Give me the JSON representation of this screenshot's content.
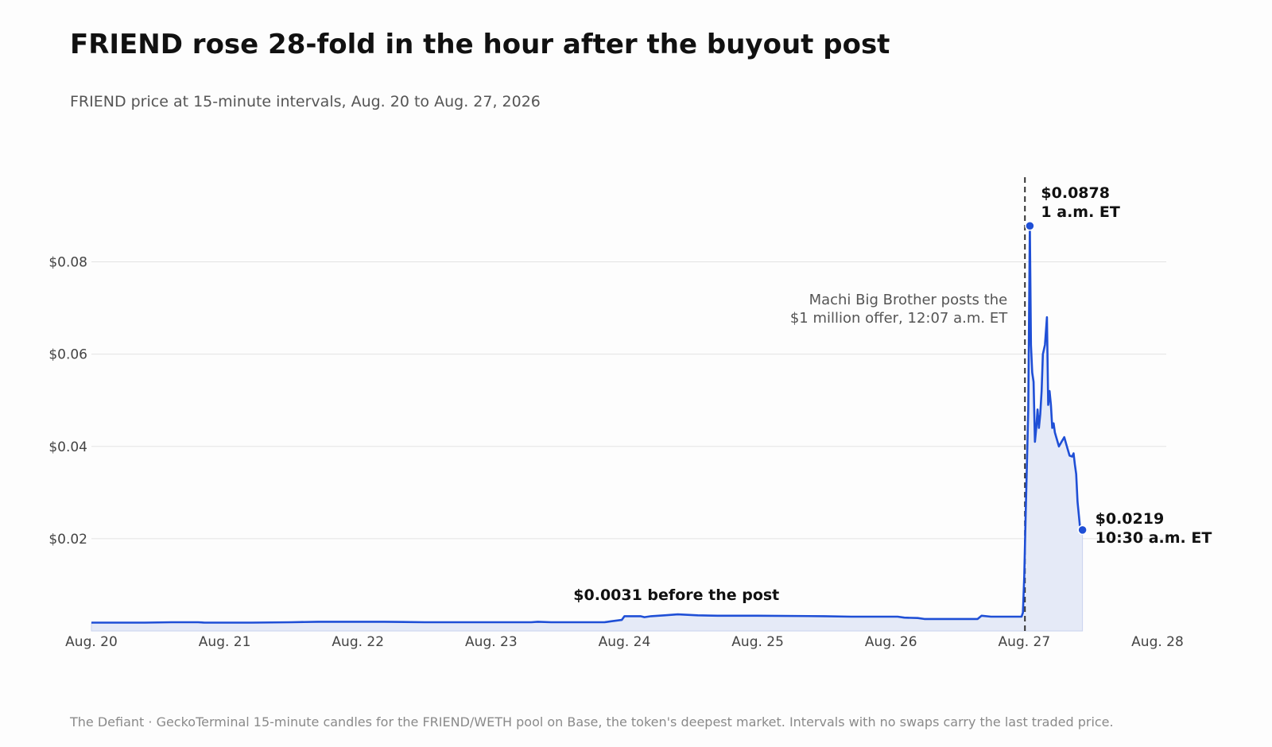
{
  "title": "FRIEND rose 28-fold in the hour after the buyout post",
  "subtitle": "FRIEND price at 15-minute intervals, Aug. 20 to Aug. 27, 2026",
  "footer": "The Defiant · GeckoTerminal 15-minute candles for the FRIEND/WETH pool on Base, the token's deepest market. Intervals with no swaps carry the last traded price.",
  "colors": {
    "line": "#1f4fd6",
    "fill": "#e5eaf7",
    "grid": "#e3e3e3",
    "event_line": "#333333"
  },
  "chart_data": {
    "type": "line",
    "x_unit": "days after Aug. 20, 2026 00:00 ET",
    "xlim": [
      0,
      8
    ],
    "ylim": [
      0,
      0.098
    ],
    "x_ticks": [
      {
        "value": 0,
        "label": "Aug. 20"
      },
      {
        "value": 1,
        "label": "Aug. 21"
      },
      {
        "value": 2,
        "label": "Aug. 22"
      },
      {
        "value": 3,
        "label": "Aug. 23"
      },
      {
        "value": 4,
        "label": "Aug. 24"
      },
      {
        "value": 5,
        "label": "Aug. 25"
      },
      {
        "value": 6,
        "label": "Aug. 26"
      },
      {
        "value": 7,
        "label": "Aug. 27"
      },
      {
        "value": 8,
        "label": "Aug. 28"
      }
    ],
    "y_ticks": [
      {
        "value": 0.02,
        "label": "$0.02"
      },
      {
        "value": 0.04,
        "label": "$0.04"
      },
      {
        "value": 0.06,
        "label": "$0.06"
      },
      {
        "value": 0.08,
        "label": "$0.08"
      }
    ],
    "grid": true,
    "series": [
      {
        "points": [
          [
            0,
            0.0018
          ],
          [
            0.4,
            0.0018
          ],
          [
            0.6,
            0.0019
          ],
          [
            0.8,
            0.0019
          ],
          [
            0.85,
            0.0018
          ],
          [
            1.2,
            0.0018
          ],
          [
            1.5,
            0.0019
          ],
          [
            1.7,
            0.002
          ],
          [
            2.2,
            0.002
          ],
          [
            2.5,
            0.0019
          ],
          [
            3.3,
            0.0019
          ],
          [
            3.35,
            0.002
          ],
          [
            3.45,
            0.0019
          ],
          [
            3.85,
            0.0019
          ],
          [
            3.9,
            0.0021
          ],
          [
            3.98,
            0.0024
          ],
          [
            4.0,
            0.0032
          ],
          [
            4.12,
            0.0032
          ],
          [
            4.15,
            0.003
          ],
          [
            4.2,
            0.0032
          ],
          [
            4.3,
            0.0034
          ],
          [
            4.4,
            0.0036
          ],
          [
            4.55,
            0.0034
          ],
          [
            4.7,
            0.0033
          ],
          [
            5.0,
            0.0033
          ],
          [
            5.5,
            0.0032
          ],
          [
            5.7,
            0.0031
          ],
          [
            6.05,
            0.0031
          ],
          [
            6.1,
            0.0029
          ],
          [
            6.2,
            0.0028
          ],
          [
            6.25,
            0.0026
          ],
          [
            6.65,
            0.0026
          ],
          [
            6.68,
            0.0033
          ],
          [
            6.75,
            0.0031
          ],
          [
            6.98,
            0.0031
          ],
          [
            6.99,
            0.004
          ],
          [
            7.0,
            0.012
          ],
          [
            7.01,
            0.025
          ],
          [
            7.02,
            0.036
          ],
          [
            7.03,
            0.048
          ],
          [
            7.042,
            0.0878
          ],
          [
            7.05,
            0.062
          ],
          [
            7.06,
            0.056
          ],
          [
            7.07,
            0.054
          ],
          [
            7.08,
            0.041
          ],
          [
            7.09,
            0.044
          ],
          [
            7.1,
            0.048
          ],
          [
            7.11,
            0.044
          ],
          [
            7.12,
            0.047
          ],
          [
            7.13,
            0.052
          ],
          [
            7.14,
            0.06
          ],
          [
            7.155,
            0.062
          ],
          [
            7.17,
            0.068
          ],
          [
            7.18,
            0.049
          ],
          [
            7.19,
            0.052
          ],
          [
            7.2,
            0.049
          ],
          [
            7.21,
            0.044
          ],
          [
            7.22,
            0.045
          ],
          [
            7.23,
            0.043
          ],
          [
            7.24,
            0.042
          ],
          [
            7.26,
            0.04
          ],
          [
            7.28,
            0.041
          ],
          [
            7.3,
            0.042
          ],
          [
            7.32,
            0.04
          ],
          [
            7.34,
            0.038
          ],
          [
            7.36,
            0.0378
          ],
          [
            7.37,
            0.0385
          ],
          [
            7.38,
            0.036
          ],
          [
            7.39,
            0.034
          ],
          [
            7.4,
            0.028
          ],
          [
            7.42,
            0.022
          ],
          [
            7.437,
            0.0219
          ]
        ]
      }
    ],
    "event": {
      "x": 7.005,
      "label_lines": [
        "Machi Big Brother posts the",
        "$1 million offer, 12:07 a.m. ET"
      ]
    },
    "annotations": [
      {
        "name": "peak",
        "x": 7.042,
        "y": 0.0878,
        "lines": [
          "$0.0878",
          "1 a.m. ET"
        ],
        "marker": true
      },
      {
        "name": "latest",
        "x": 7.437,
        "y": 0.0219,
        "lines": [
          "$0.0219",
          "10:30 a.m. ET"
        ],
        "marker": true
      },
      {
        "name": "before",
        "x": 4.3,
        "y": 0.0031,
        "lines": [
          "$0.0031 before the post"
        ],
        "marker": false
      }
    ]
  }
}
